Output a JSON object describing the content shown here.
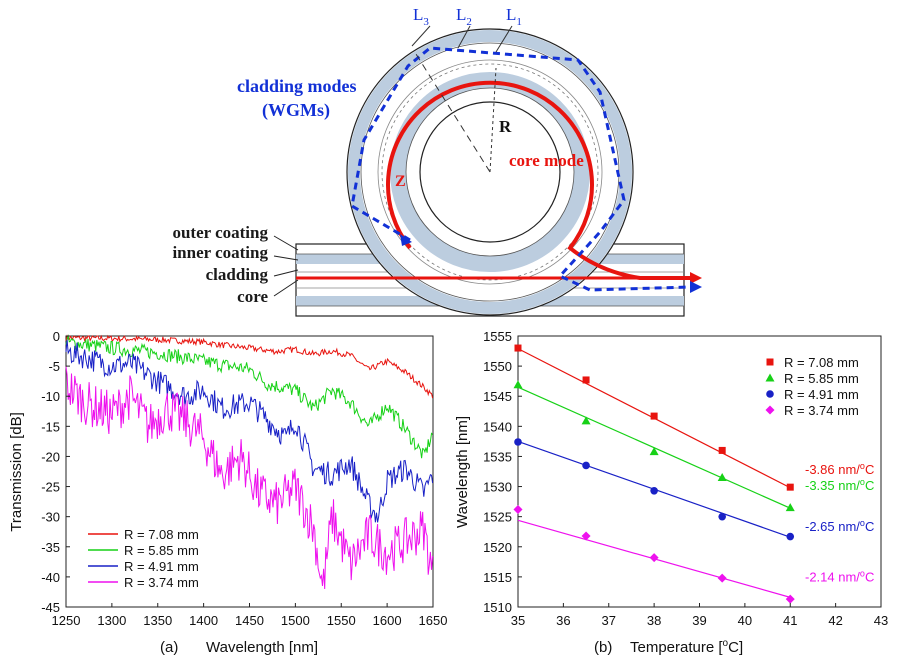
{
  "diagram": {
    "labels": {
      "L3": "L",
      "L3_sub": "3",
      "L2": "L",
      "L2_sub": "2",
      "L1": "L",
      "L1_sub": "1",
      "cladding_modes": "cladding modes",
      "wgms": "(WGMs)",
      "R": "R",
      "core_mode": "core mode",
      "Z": "Z"
    },
    "layer_labels": [
      "outer coating",
      "inner coating",
      "cladding",
      "core"
    ],
    "colors": {
      "coating": "#bccddf",
      "core_mode": "#e8140f",
      "cladding_mode": "#1231d6",
      "label": "#1a1a1a"
    }
  },
  "chart_data": [
    {
      "type": "line",
      "panel_label": "(a)",
      "xlabel": "Wavelength [nm]",
      "ylabel": "Transmission [dB]",
      "xlim": [
        1250,
        1650
      ],
      "ylim": [
        -45,
        0
      ],
      "xticks": [
        1250,
        1300,
        1350,
        1400,
        1450,
        1500,
        1550,
        1600,
        1650
      ],
      "yticks": [
        0,
        -5,
        -10,
        -15,
        -20,
        -25,
        -30,
        -35,
        -40,
        -45
      ],
      "legend_position": "bottom-left",
      "series": [
        {
          "name": "R = 7.08 mm",
          "color": "#e8140f",
          "x": [
            1250,
            1300,
            1350,
            1400,
            1420,
            1450,
            1480,
            1500,
            1520,
            1540,
            1560,
            1580,
            1600,
            1620,
            1640,
            1650
          ],
          "y": [
            -0.3,
            -0.4,
            -0.6,
            -1.0,
            -1.5,
            -2.0,
            -2.6,
            -2.2,
            -3.0,
            -2.5,
            -3.2,
            -5.6,
            -4.2,
            -6.0,
            -8.5,
            -10.0
          ]
        },
        {
          "name": "R = 5.85 mm",
          "color": "#17d117",
          "x": [
            1250,
            1300,
            1350,
            1380,
            1420,
            1450,
            1470,
            1500,
            1520,
            1540,
            1560,
            1580,
            1600,
            1620,
            1640,
            1650
          ],
          "y": [
            -1.0,
            -2.0,
            -2.8,
            -3.6,
            -4.8,
            -5.5,
            -8.0,
            -9.0,
            -12.0,
            -9.0,
            -11.0,
            -15.0,
            -11.5,
            -15.5,
            -20.0,
            -16.0
          ]
        },
        {
          "name": "R = 4.91 mm",
          "color": "#1921c6",
          "x": [
            1250,
            1280,
            1300,
            1320,
            1350,
            1380,
            1400,
            1420,
            1450,
            1470,
            1490,
            1500,
            1520,
            1540,
            1560,
            1580,
            1590,
            1600,
            1620,
            1640,
            1650
          ],
          "y": [
            -2.5,
            -4.0,
            -5.0,
            -4.5,
            -7.5,
            -10.0,
            -9.0,
            -12.0,
            -11.0,
            -14.0,
            -17.0,
            -14.0,
            -22.0,
            -23.0,
            -21.0,
            -28.0,
            -30.0,
            -24.0,
            -22.0,
            -26.0,
            -23.0
          ]
        },
        {
          "name": "R = 3.74 mm",
          "color": "#ee11ee",
          "x": [
            1250,
            1270,
            1300,
            1320,
            1340,
            1360,
            1380,
            1400,
            1420,
            1440,
            1460,
            1480,
            1500,
            1520,
            1530,
            1540,
            1560,
            1580,
            1600,
            1620,
            1640,
            1650
          ],
          "y": [
            -8.0,
            -11.0,
            -13.0,
            -10.0,
            -15.0,
            -12.0,
            -14.0,
            -17.0,
            -23.0,
            -20.0,
            -26.0,
            -28.0,
            -25.0,
            -32.0,
            -42.0,
            -30.0,
            -38.0,
            -33.0,
            -36.0,
            -34.0,
            -32.0,
            -40.0
          ]
        }
      ]
    },
    {
      "type": "scatter",
      "panel_label": "(b)",
      "xlabel": "Temperature [",
      "xlabel_unit": "o",
      "xlabel_end": "C]",
      "ylabel": "Wavelength [nm]",
      "xlim": [
        35,
        43
      ],
      "ylim": [
        1510,
        1555
      ],
      "xticks": [
        35,
        36,
        37,
        38,
        39,
        40,
        41,
        42,
        43
      ],
      "yticks": [
        1510,
        1515,
        1520,
        1525,
        1530,
        1535,
        1540,
        1545,
        1550,
        1555
      ],
      "legend_position": "top-right",
      "series": [
        {
          "name": "R = 7.08 mm",
          "color": "#e8140f",
          "marker": "square",
          "x": [
            35,
            36.5,
            38,
            39.5,
            41
          ],
          "y": [
            1553.0,
            1547.7,
            1541.7,
            1536.0,
            1529.9
          ],
          "fit": [
            1552.9,
            1529.8
          ],
          "slope_label": "-3.86 nm/",
          "slope_unit": "o",
          "slope_end": "C"
        },
        {
          "name": "R = 5.85 mm",
          "color": "#17d117",
          "marker": "triangle",
          "x": [
            35,
            36.5,
            38,
            39.5,
            41
          ],
          "y": [
            1546.9,
            1540.9,
            1535.8,
            1531.5,
            1526.5
          ],
          "fit": [
            1546.5,
            1526.4
          ],
          "slope_label": "-3.35 nm/",
          "slope_unit": "o",
          "slope_end": "C"
        },
        {
          "name": "R = 4.91 mm",
          "color": "#1921c6",
          "marker": "circle",
          "x": [
            35,
            36.5,
            38,
            39.5,
            41
          ],
          "y": [
            1537.4,
            1533.5,
            1529.3,
            1525.0,
            1521.7
          ],
          "fit": [
            1537.5,
            1521.6
          ],
          "slope_label": "-2.65 nm/",
          "slope_unit": "o",
          "slope_end": "C"
        },
        {
          "name": "R = 3.74 mm",
          "color": "#ee11ee",
          "marker": "diamond",
          "x": [
            35,
            36.5,
            38,
            39.5,
            41
          ],
          "y": [
            1526.2,
            1521.8,
            1518.2,
            1514.8,
            1511.3
          ],
          "fit": [
            1524.4,
            1511.6
          ],
          "slope_label": "-2.14 nm/",
          "slope_unit": "o",
          "slope_end": "C"
        }
      ]
    }
  ]
}
